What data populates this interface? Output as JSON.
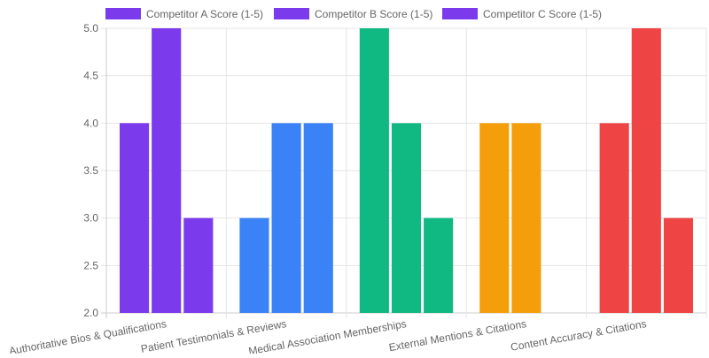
{
  "chart_data": {
    "type": "bar",
    "categories": [
      "Authoritative Bios & Qualifications",
      "Patient Testimonials & Reviews",
      "Medical Association Memberships",
      "External Mentions & Citations",
      "Content Accuracy & Citations"
    ],
    "series": [
      {
        "name": "Competitor A Score (1-5)",
        "values": [
          4,
          3,
          5,
          4,
          4
        ]
      },
      {
        "name": "Competitor B Score (1-5)",
        "values": [
          5,
          4,
          4,
          4,
          5
        ]
      },
      {
        "name": "Competitor C Score (1-5)",
        "values": [
          3,
          4,
          3,
          null,
          3
        ]
      }
    ],
    "category_colors": [
      "#7c3aed",
      "#3b82f6",
      "#10b981",
      "#f59e0b",
      "#ef4444"
    ],
    "legend_color": "#7c3aed",
    "ylim": [
      2,
      5
    ],
    "yticks": [
      "2.0",
      "2.5",
      "3.0",
      "3.5",
      "4.0",
      "4.5",
      "5.0"
    ],
    "grid": true,
    "legend_position": "top"
  }
}
